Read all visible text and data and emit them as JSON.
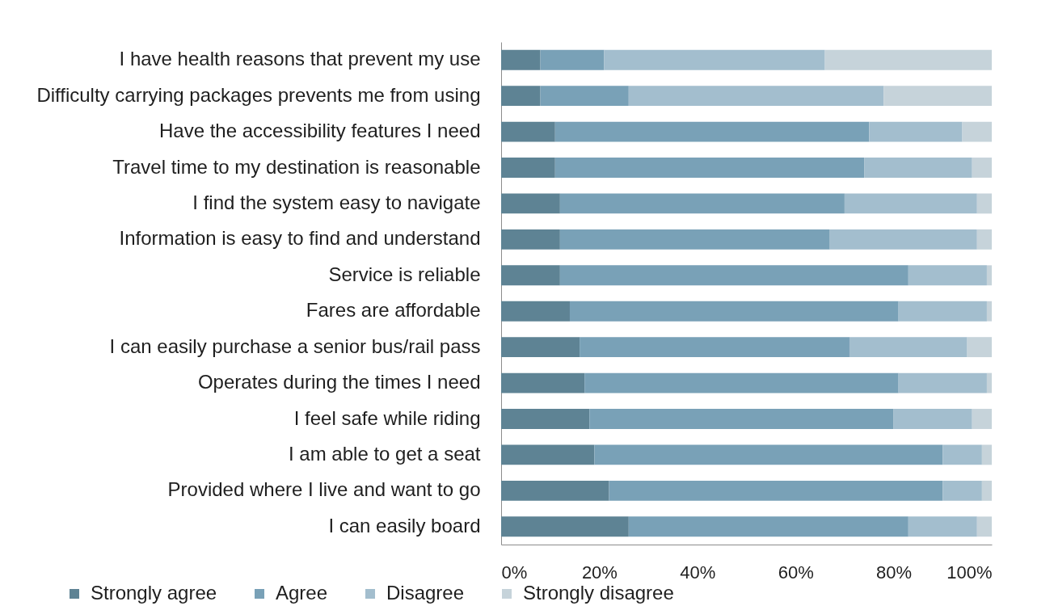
{
  "chart_data": {
    "type": "bar",
    "orientation": "horizontal",
    "stacked": true,
    "categories": [
      "I have health reasons that prevent my use",
      "Difficulty carrying packages prevents me from using",
      "Have the accessibility features I need",
      "Travel time to my destination is reasonable",
      "I find the system easy to navigate",
      "Information is easy to find and understand",
      "Service is reliable",
      "Fares are affordable",
      "I can easily purchase a senior bus/rail pass",
      "Operates during the times I need",
      "I feel safe while riding",
      "I am able to get a seat",
      "Provided where I live and want to go",
      "I can easily board"
    ],
    "series": [
      {
        "name": "Strongly agree",
        "color": "#5e8394",
        "values": [
          8,
          8,
          11,
          11,
          12,
          12,
          12,
          14,
          16,
          17,
          18,
          19,
          22,
          26
        ]
      },
      {
        "name": "Agree",
        "color": "#79a1b7",
        "values": [
          13,
          18,
          64,
          63,
          58,
          55,
          71,
          67,
          55,
          64,
          62,
          71,
          68,
          57
        ]
      },
      {
        "name": "Disagree",
        "color": "#a3bece",
        "values": [
          45,
          52,
          19,
          22,
          27,
          30,
          16,
          18,
          24,
          18,
          16,
          8,
          8,
          14
        ]
      },
      {
        "name": "Strongly disagree",
        "color": "#c6d3da",
        "values": [
          34,
          22,
          6,
          4,
          3,
          3,
          1,
          1,
          5,
          1,
          4,
          2,
          2,
          3
        ]
      }
    ],
    "xlim": [
      0,
      100
    ],
    "xticks": [
      {
        "value": 0,
        "label": "0%"
      },
      {
        "value": 20,
        "label": "20%"
      },
      {
        "value": 40,
        "label": "40%"
      },
      {
        "value": 60,
        "label": "60%"
      },
      {
        "value": 80,
        "label": "80%"
      },
      {
        "value": 100,
        "label": "100%"
      }
    ],
    "legend": "bottom"
  }
}
